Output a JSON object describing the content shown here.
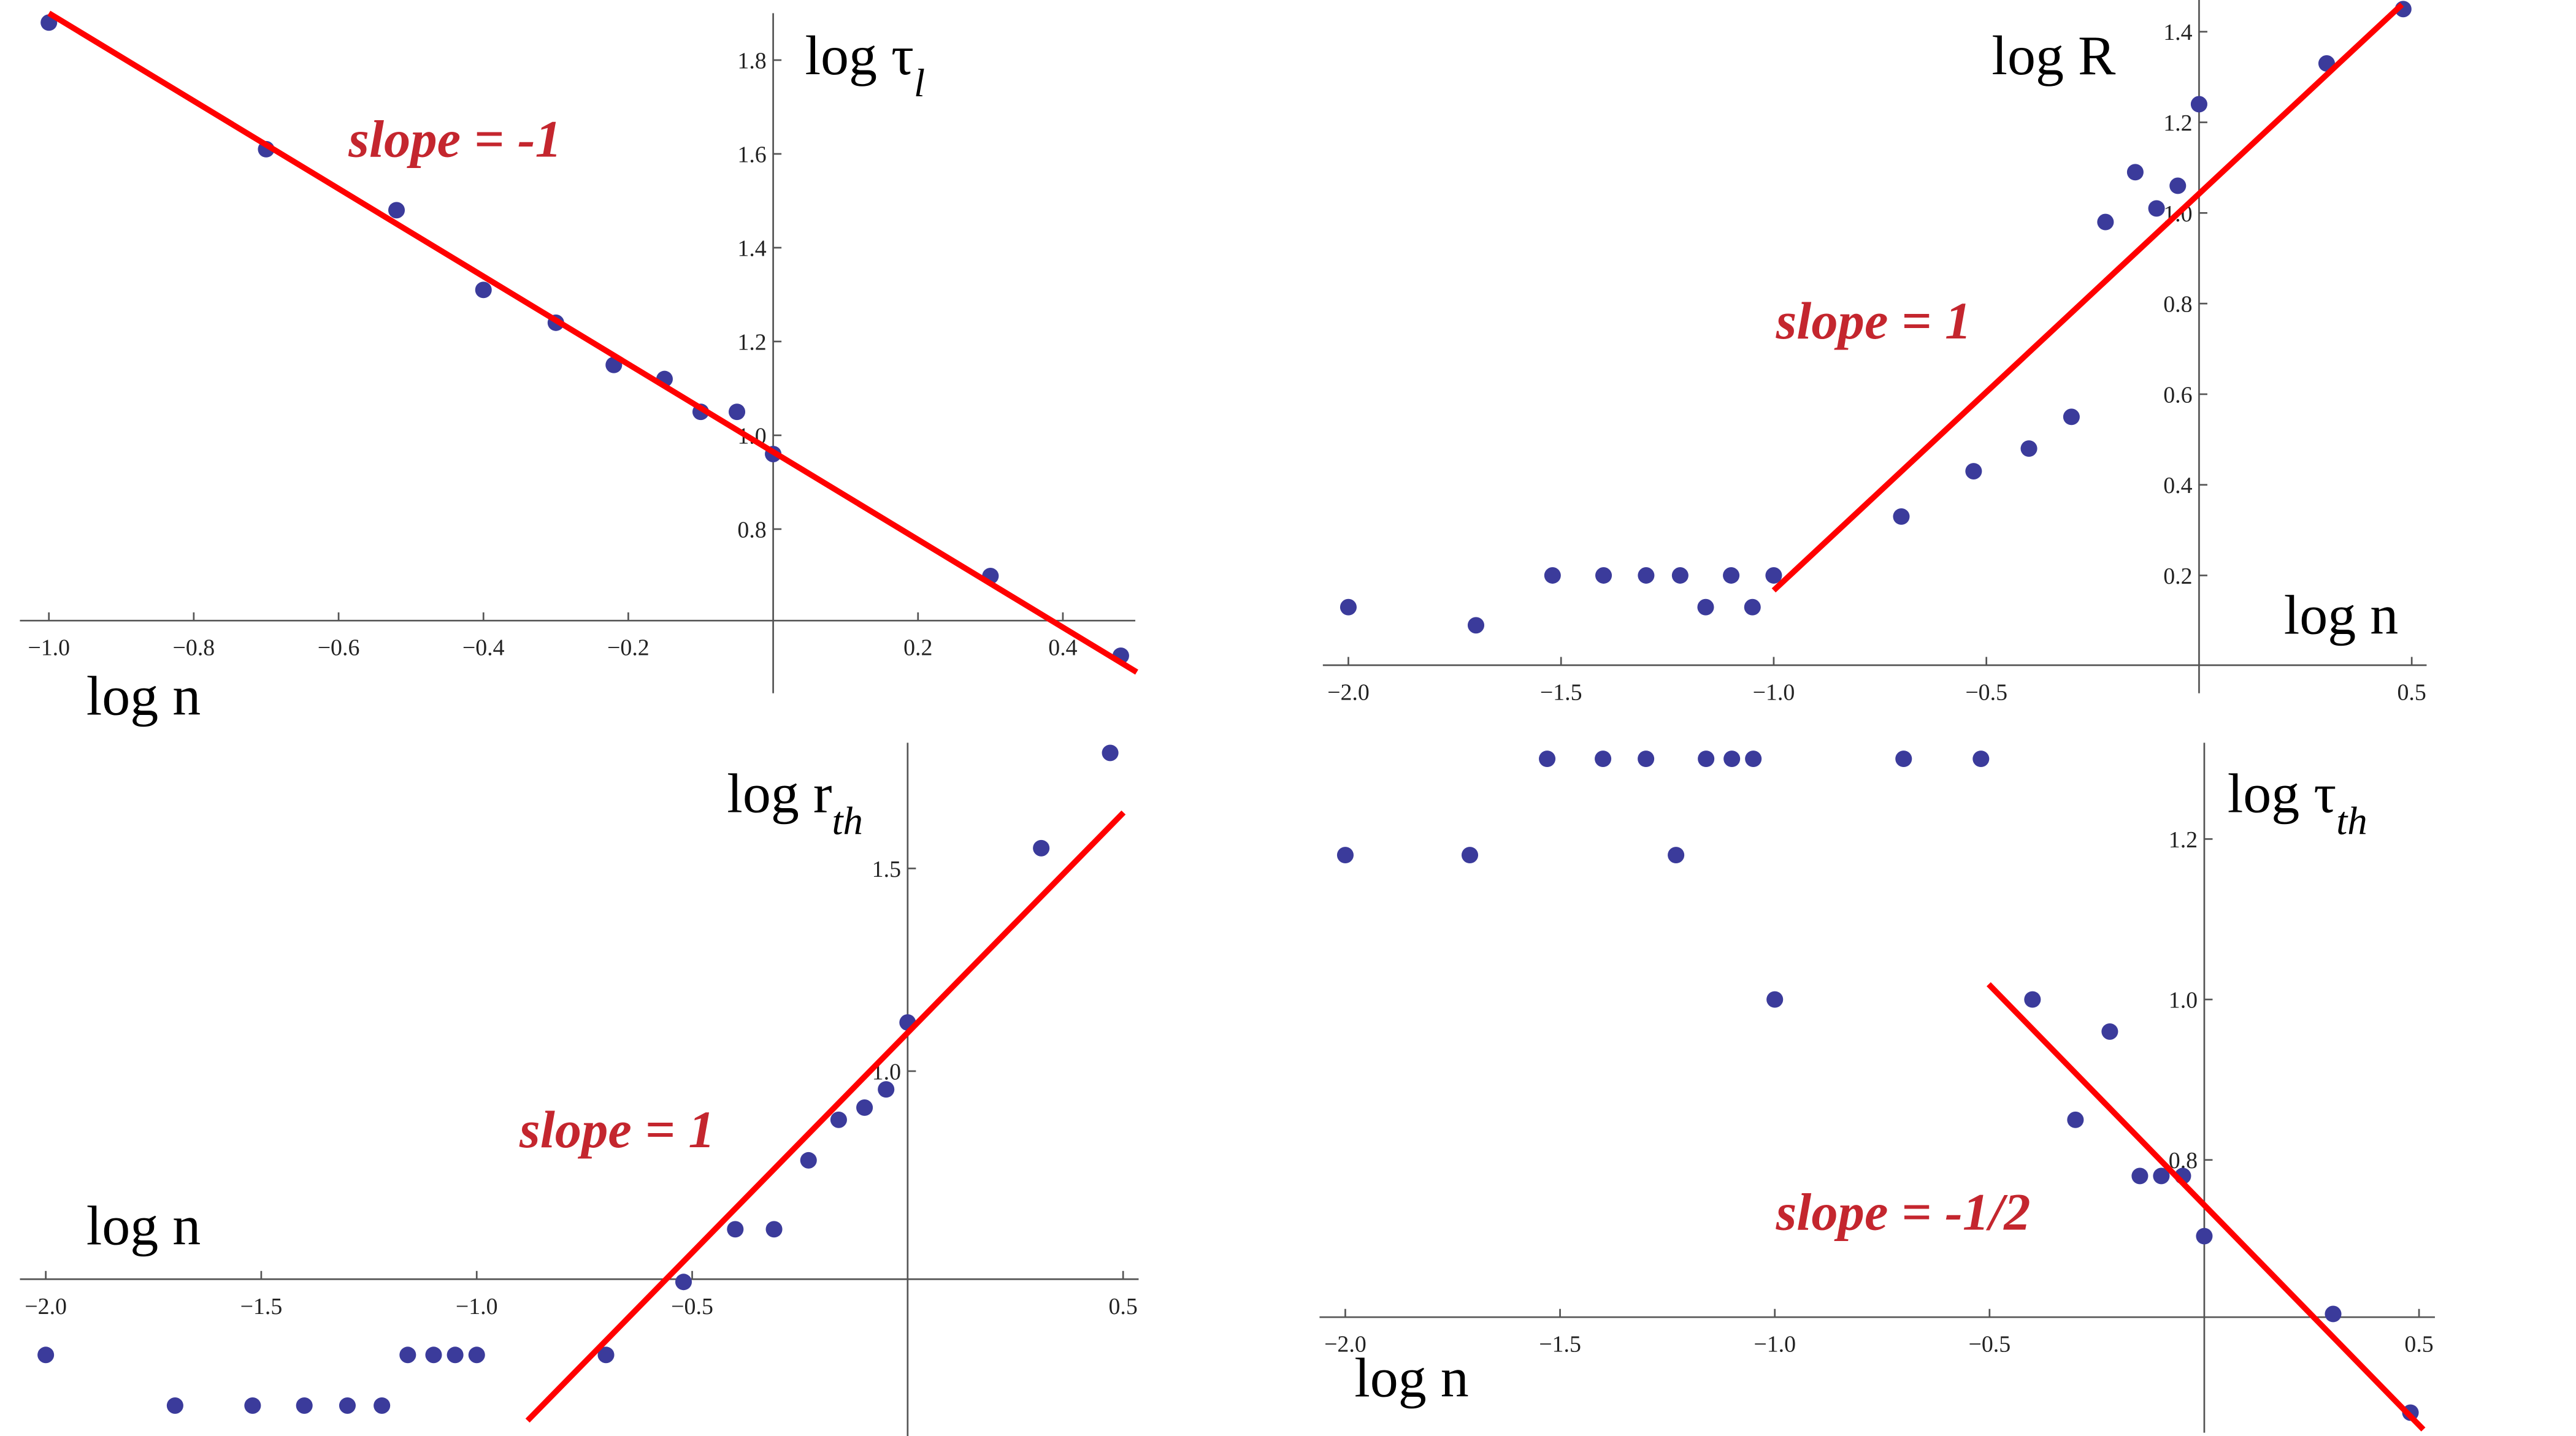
{
  "chart_data": [
    {
      "type": "scatter",
      "x": [
        -1.0,
        -0.7,
        -0.52,
        -0.4,
        -0.3,
        -0.22,
        -0.15,
        -0.1,
        -0.05,
        0,
        0.3,
        0.48
      ],
      "values": [
        1.88,
        1.61,
        1.48,
        1.31,
        1.24,
        1.15,
        1.12,
        1.05,
        1.05,
        0.96,
        0.7,
        0.53
      ],
      "color": "#3b3b9b",
      "fit": {
        "x": [
          -1.0,
          0.502
        ],
        "values": [
          1.9,
          0.495
        ],
        "color": "#ff0000"
      },
      "xlim": [
        -1.04,
        0.5
      ],
      "ylim": [
        0.45,
        1.9
      ],
      "xticks": [
        {
          "value": -1.0,
          "label": "−1.0"
        },
        {
          "value": -0.8,
          "label": "−0.8"
        },
        {
          "value": -0.6,
          "label": "−0.6"
        },
        {
          "value": -0.4,
          "label": "−0.4"
        },
        {
          "value": -0.2,
          "label": "−0.2"
        },
        0.2,
        0.4
      ],
      "yticks": [
        0.8,
        {
          "value": 1.0,
          "label": "1.0"
        },
        1.2,
        1.4,
        1.6,
        1.8
      ],
      "xlabel": "log n",
      "ylabel": "log τ",
      "ylabel_sub": "l",
      "annotation": "slope = -1",
      "annotation_color": "#c4262e"
    },
    {
      "type": "scatter",
      "x": [
        -2.0,
        -1.7,
        -1.52,
        -1.4,
        -1.3,
        -1.22,
        -1.16,
        -1.1,
        -1.05,
        -1.0,
        -0.7,
        -0.53,
        -0.4,
        -0.3,
        -0.22,
        -0.15,
        -0.1,
        -0.05,
        0,
        0.3,
        0.48
      ],
      "values": [
        0.13,
        0.09,
        0.2,
        0.2,
        0.2,
        0.2,
        0.13,
        0.2,
        0.13,
        0.2,
        0.33,
        0.43,
        0.48,
        0.55,
        0.98,
        1.09,
        1.01,
        1.06,
        1.24,
        1.33,
        1.45
      ],
      "color": "#3b3b9b",
      "fit": {
        "x": [
          -1.0,
          0.477
        ],
        "values": [
          0.167,
          1.46
        ],
        "color": "#ff0000"
      },
      "xlim": [
        -2.06,
        0.535
      ],
      "ylim": [
        -0.06,
        1.47
      ],
      "xticks": [
        {
          "value": -2.0,
          "label": "−2.0"
        },
        {
          "value": -1.5,
          "label": "−1.5"
        },
        {
          "value": -1.0,
          "label": "−1.0"
        },
        {
          "value": -0.5,
          "label": "−0.5"
        },
        0.5
      ],
      "yticks": [
        0.2,
        0.4,
        0.6,
        0.8,
        {
          "value": 1.0,
          "label": "1.0"
        },
        1.2,
        1.4
      ],
      "xlabel": "log n",
      "ylabel": "log R",
      "annotation": "slope = 1",
      "annotation_color": "#c4262e"
    },
    {
      "type": "scatter",
      "x": [
        -2.0,
        -1.7,
        -1.52,
        -1.4,
        -1.3,
        -1.22,
        -1.16,
        -1.1,
        -1.05,
        -1.0,
        -0.7,
        -0.52,
        -0.4,
        -0.31,
        -0.23,
        -0.16,
        -0.1,
        -0.05,
        0,
        0.31,
        0.47
      ],
      "values": [
        0.3,
        0.175,
        0.175,
        0.175,
        0.175,
        0.175,
        0.3,
        0.3,
        0.3,
        0.3,
        0.3,
        0.48,
        0.61,
        0.61,
        0.78,
        0.88,
        0.91,
        0.955,
        1.12,
        1.55,
        1.785
      ],
      "color": "#3b3b9b",
      "fit": {
        "x": [
          -0.882,
          0.501
        ],
        "values": [
          0.138,
          1.638
        ],
        "color": "#ff0000"
      },
      "xlim": [
        -2.06,
        0.536
      ],
      "ylim": [
        0.1,
        1.81
      ],
      "xticks": [
        {
          "value": -2.0,
          "label": "−2.0"
        },
        {
          "value": -1.5,
          "label": "−1.5"
        },
        {
          "value": -1.0,
          "label": "−1.0"
        },
        {
          "value": -0.5,
          "label": "−0.5"
        },
        0.5
      ],
      "yticks": [
        {
          "value": 1.0,
          "label": "1.0"
        },
        1.5
      ],
      "xlabel": "log n",
      "ylabel": "log r",
      "ylabel_sub": "th",
      "annotation": "slope = 1",
      "annotation_color": "#c4262e"
    },
    {
      "type": "scatter",
      "x": [
        -2.0,
        -1.71,
        -1.53,
        -1.4,
        -1.3,
        -1.23,
        -1.16,
        -1.1,
        -1.05,
        -1.0,
        -0.7,
        -0.52,
        -0.4,
        -0.3,
        -0.22,
        -0.15,
        -0.1,
        -0.05,
        0,
        0.3,
        0.48
      ],
      "values": [
        1.18,
        1.18,
        1.3,
        1.3,
        1.3,
        1.18,
        1.3,
        1.3,
        1.3,
        1.0,
        1.3,
        1.3,
        1.0,
        0.85,
        0.96,
        0.78,
        0.78,
        0.78,
        0.705,
        0.608,
        0.485
      ],
      "color": "#3b3b9b",
      "fit": {
        "x": [
          -0.502,
          0.51
        ],
        "values": [
          1.019,
          0.464
        ],
        "color": "#ff0000"
      },
      "xlim": [
        -2.06,
        0.537
      ],
      "ylim": [
        0.46,
        1.32
      ],
      "xticks": [
        {
          "value": -2.0,
          "label": "−2.0"
        },
        {
          "value": -1.5,
          "label": "−1.5"
        },
        {
          "value": -1.0,
          "label": "−1.0"
        },
        {
          "value": -0.5,
          "label": "−0.5"
        },
        0.5
      ],
      "yticks": [
        0.8,
        {
          "value": 1.0,
          "label": "1.0"
        },
        1.2
      ],
      "xlabel": "log n",
      "ylabel": "log τ",
      "ylabel_sub": "th",
      "annotation": "slope = -1/2",
      "annotation_color": "#c4262e"
    }
  ]
}
